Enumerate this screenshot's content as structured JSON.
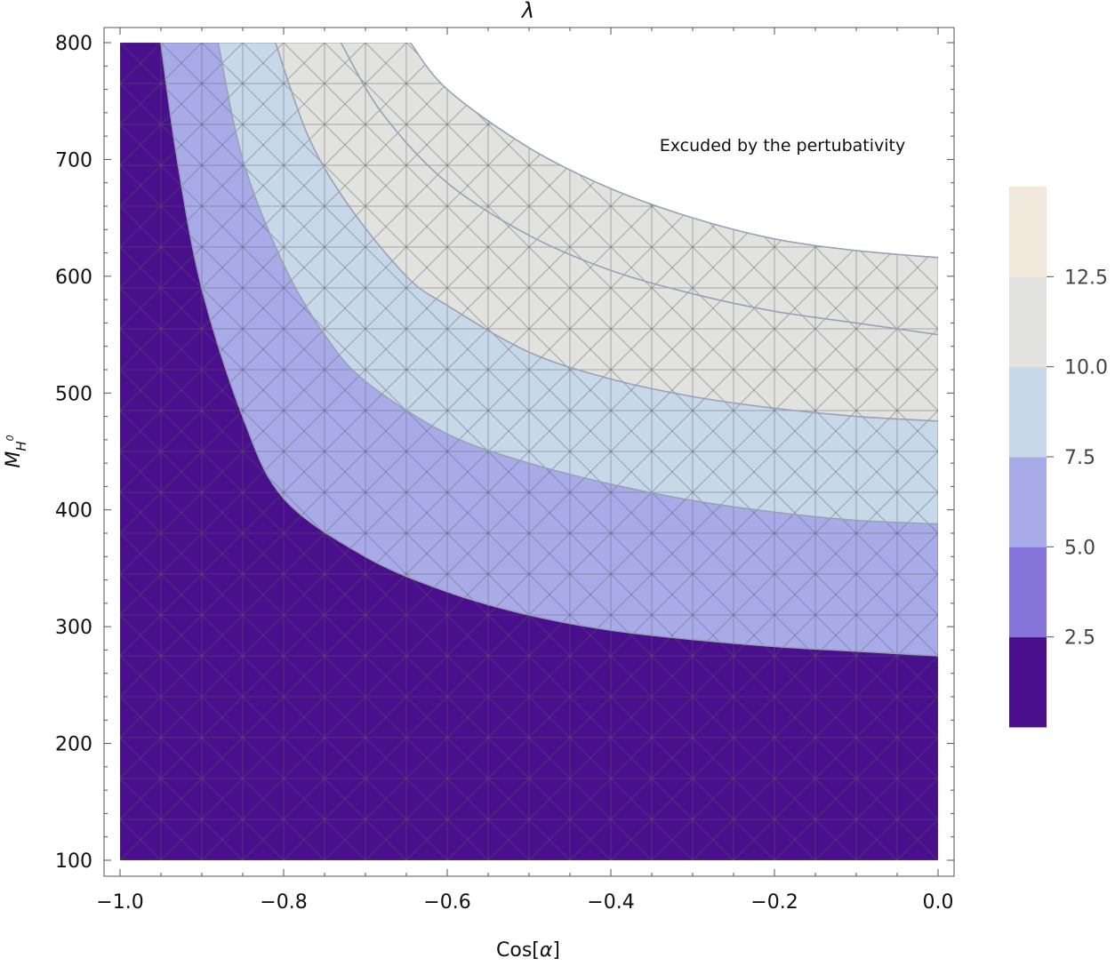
{
  "chart_data": {
    "type": "contour",
    "title": "λ",
    "xlabel": "Cos[α]",
    "ylabel_base": "M",
    "ylabel_sub": "H",
    "ylabel_sup": "0",
    "xlim": [
      -1.0,
      0.0
    ],
    "ylim": [
      100,
      800
    ],
    "x_ticks": [
      -1.0,
      -0.8,
      -0.6,
      -0.4,
      -0.2,
      0.0
    ],
    "x_tick_labels": [
      "−1.0",
      "−0.8",
      "−0.6",
      "−0.4",
      "−0.2",
      "0.0"
    ],
    "y_ticks": [
      100,
      200,
      300,
      400,
      500,
      600,
      700,
      800
    ],
    "y_tick_labels": [
      "100",
      "200",
      "300",
      "400",
      "500",
      "600",
      "700",
      "800"
    ],
    "annotation": "Excuded by the pertubativity",
    "contour_levels": [
      2.5,
      5.0,
      7.5,
      10.0,
      12.5
    ],
    "legend": {
      "position": "right",
      "tick_labels": [
        "2.5",
        "5.0",
        "7.5",
        "10.0",
        "12.5"
      ],
      "colors": [
        "#4a0f8c",
        "#8574da",
        "#a9abe9",
        "#c7d9e8",
        "#e2e3df",
        "#f0e9db"
      ]
    },
    "band_colors": [
      "#4a0f8c",
      "#8574da",
      "#a9abe9",
      "#c7d9e8",
      "#e2e3df"
    ],
    "contour_lines": [
      {
        "level": 2.5,
        "points": [
          [
            -0.95,
            800
          ],
          [
            -0.93,
            700
          ],
          [
            -0.9,
            590
          ],
          [
            -0.85,
            480
          ],
          [
            -0.8,
            410
          ],
          [
            -0.7,
            360
          ],
          [
            -0.6,
            330
          ],
          [
            -0.5,
            310
          ],
          [
            -0.4,
            297
          ],
          [
            -0.3,
            289
          ],
          [
            -0.2,
            283
          ],
          [
            -0.1,
            279
          ],
          [
            0.0,
            275
          ]
        ]
      },
      {
        "level": 5.0,
        "points": [
          [
            -0.88,
            800
          ],
          [
            -0.85,
            700
          ],
          [
            -0.8,
            610
          ],
          [
            -0.75,
            550
          ],
          [
            -0.7,
            510
          ],
          [
            -0.6,
            465
          ],
          [
            -0.5,
            440
          ],
          [
            -0.4,
            422
          ],
          [
            -0.3,
            408
          ],
          [
            -0.2,
            398
          ],
          [
            -0.1,
            391
          ],
          [
            0.0,
            388
          ]
        ]
      },
      {
        "level": 7.5,
        "points": [
          [
            -0.81,
            800
          ],
          [
            -0.77,
            720
          ],
          [
            -0.72,
            660
          ],
          [
            -0.65,
            600
          ],
          [
            -0.6,
            575
          ],
          [
            -0.5,
            535
          ],
          [
            -0.4,
            512
          ],
          [
            -0.3,
            497
          ],
          [
            -0.2,
            487
          ],
          [
            -0.1,
            480
          ],
          [
            0.0,
            476
          ]
        ]
      },
      {
        "level": 10.0,
        "points": [
          [
            -0.73,
            800
          ],
          [
            -0.68,
            740
          ],
          [
            -0.6,
            680
          ],
          [
            -0.5,
            635
          ],
          [
            -0.4,
            605
          ],
          [
            -0.3,
            585
          ],
          [
            -0.2,
            570
          ],
          [
            -0.1,
            560
          ],
          [
            0.0,
            550
          ]
        ]
      },
      {
        "level": 12.5,
        "points": [
          [
            -0.645,
            800
          ],
          [
            -0.6,
            760
          ],
          [
            -0.5,
            710
          ],
          [
            -0.4,
            675
          ],
          [
            -0.3,
            650
          ],
          [
            -0.2,
            632
          ],
          [
            -0.1,
            622
          ],
          [
            0.0,
            616
          ]
        ]
      }
    ]
  }
}
